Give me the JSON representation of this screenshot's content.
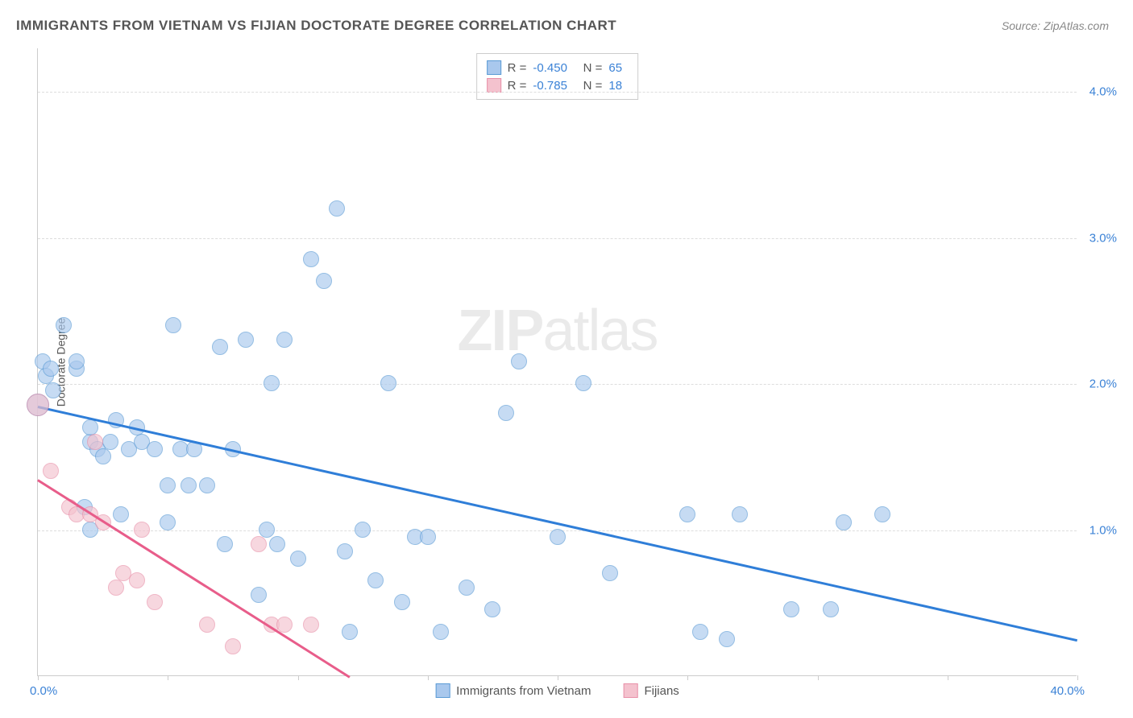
{
  "title": "IMMIGRANTS FROM VIETNAM VS FIJIAN DOCTORATE DEGREE CORRELATION CHART",
  "source": "Source: ZipAtlas.com",
  "watermark": {
    "bold": "ZIP",
    "rest": "atlas"
  },
  "yAxisLabel": "Doctorate Degree",
  "xAxis": {
    "min": 0.0,
    "max": 40.0,
    "minLabel": "0.0%",
    "maxLabel": "40.0%",
    "ticks": [
      0,
      5,
      10,
      15,
      20,
      25,
      30,
      35,
      40
    ]
  },
  "yAxis": {
    "min": 0.0,
    "max": 4.3,
    "gridLines": [
      1.0,
      2.0,
      3.0,
      4.0
    ],
    "tickLabels": [
      "1.0%",
      "2.0%",
      "3.0%",
      "4.0%"
    ]
  },
  "series": [
    {
      "name": "Immigrants from Vietnam",
      "legendLabel": "Immigrants from Vietnam",
      "fillColor": "#a9c8ed",
      "strokeColor": "#5b9bd5",
      "lineColor": "#2f7ed8",
      "R": "-0.450",
      "N": "65",
      "trendStart": {
        "x": 0,
        "y": 1.85
      },
      "trendEnd": {
        "x": 40,
        "y": 0.25
      },
      "points": [
        {
          "x": 0.0,
          "y": 1.85,
          "large": true
        },
        {
          "x": 0.2,
          "y": 2.15
        },
        {
          "x": 0.3,
          "y": 2.05
        },
        {
          "x": 0.5,
          "y": 2.1
        },
        {
          "x": 0.6,
          "y": 1.95
        },
        {
          "x": 1.0,
          "y": 2.4
        },
        {
          "x": 1.5,
          "y": 2.1
        },
        {
          "x": 1.5,
          "y": 2.15
        },
        {
          "x": 1.8,
          "y": 1.15
        },
        {
          "x": 2.0,
          "y": 1.6
        },
        {
          "x": 2.0,
          "y": 1.7
        },
        {
          "x": 2.0,
          "y": 1.0
        },
        {
          "x": 2.3,
          "y": 1.55
        },
        {
          "x": 2.5,
          "y": 1.5
        },
        {
          "x": 2.8,
          "y": 1.6
        },
        {
          "x": 3.0,
          "y": 1.75
        },
        {
          "x": 3.2,
          "y": 1.1
        },
        {
          "x": 3.5,
          "y": 1.55
        },
        {
          "x": 3.8,
          "y": 1.7
        },
        {
          "x": 4.0,
          "y": 1.6
        },
        {
          "x": 4.5,
          "y": 1.55
        },
        {
          "x": 5.0,
          "y": 1.05
        },
        {
          "x": 5.0,
          "y": 1.3
        },
        {
          "x": 5.2,
          "y": 2.4
        },
        {
          "x": 5.5,
          "y": 1.55
        },
        {
          "x": 5.8,
          "y": 1.3
        },
        {
          "x": 6.0,
          "y": 1.55
        },
        {
          "x": 6.5,
          "y": 1.3
        },
        {
          "x": 7.0,
          "y": 2.25
        },
        {
          "x": 7.2,
          "y": 0.9
        },
        {
          "x": 7.5,
          "y": 1.55
        },
        {
          "x": 8.0,
          "y": 2.3
        },
        {
          "x": 8.5,
          "y": 0.55
        },
        {
          "x": 8.8,
          "y": 1.0
        },
        {
          "x": 9.0,
          "y": 2.0
        },
        {
          "x": 9.2,
          "y": 0.9
        },
        {
          "x": 9.5,
          "y": 2.3
        },
        {
          "x": 10.0,
          "y": 0.8
        },
        {
          "x": 10.5,
          "y": 2.85
        },
        {
          "x": 11.0,
          "y": 2.7
        },
        {
          "x": 11.5,
          "y": 3.2
        },
        {
          "x": 11.8,
          "y": 0.85
        },
        {
          "x": 12.0,
          "y": 0.3
        },
        {
          "x": 12.5,
          "y": 1.0
        },
        {
          "x": 13.0,
          "y": 0.65
        },
        {
          "x": 13.5,
          "y": 2.0
        },
        {
          "x": 14.0,
          "y": 0.5
        },
        {
          "x": 14.5,
          "y": 0.95
        },
        {
          "x": 15.0,
          "y": 0.95
        },
        {
          "x": 15.5,
          "y": 0.3
        },
        {
          "x": 16.5,
          "y": 0.6
        },
        {
          "x": 17.5,
          "y": 0.45
        },
        {
          "x": 18.0,
          "y": 1.8
        },
        {
          "x": 18.5,
          "y": 2.15
        },
        {
          "x": 20.0,
          "y": 0.95
        },
        {
          "x": 21.0,
          "y": 2.0
        },
        {
          "x": 22.0,
          "y": 0.7
        },
        {
          "x": 25.0,
          "y": 1.1
        },
        {
          "x": 25.5,
          "y": 0.3
        },
        {
          "x": 26.5,
          "y": 0.25
        },
        {
          "x": 27.0,
          "y": 1.1
        },
        {
          "x": 29.0,
          "y": 0.45
        },
        {
          "x": 30.5,
          "y": 0.45
        },
        {
          "x": 31.0,
          "y": 1.05
        },
        {
          "x": 32.5,
          "y": 1.1
        }
      ]
    },
    {
      "name": "Fijians",
      "legendLabel": "Fijians",
      "fillColor": "#f4c2ce",
      "strokeColor": "#e890a8",
      "lineColor": "#e85d8a",
      "R": "-0.785",
      "N": "18",
      "trendStart": {
        "x": 0,
        "y": 1.35
      },
      "trendEnd": {
        "x": 12,
        "y": 0.0
      },
      "points": [
        {
          "x": 0.0,
          "y": 1.85,
          "large": true
        },
        {
          "x": 0.5,
          "y": 1.4
        },
        {
          "x": 1.2,
          "y": 1.15
        },
        {
          "x": 1.5,
          "y": 1.1
        },
        {
          "x": 2.0,
          "y": 1.1
        },
        {
          "x": 2.2,
          "y": 1.6
        },
        {
          "x": 2.5,
          "y": 1.05
        },
        {
          "x": 3.0,
          "y": 0.6
        },
        {
          "x": 3.3,
          "y": 0.7
        },
        {
          "x": 3.8,
          "y": 0.65
        },
        {
          "x": 4.0,
          "y": 1.0
        },
        {
          "x": 4.5,
          "y": 0.5
        },
        {
          "x": 6.5,
          "y": 0.35
        },
        {
          "x": 7.5,
          "y": 0.2
        },
        {
          "x": 8.5,
          "y": 0.9
        },
        {
          "x": 9.0,
          "y": 0.35
        },
        {
          "x": 9.5,
          "y": 0.35
        },
        {
          "x": 10.5,
          "y": 0.35
        }
      ]
    }
  ]
}
